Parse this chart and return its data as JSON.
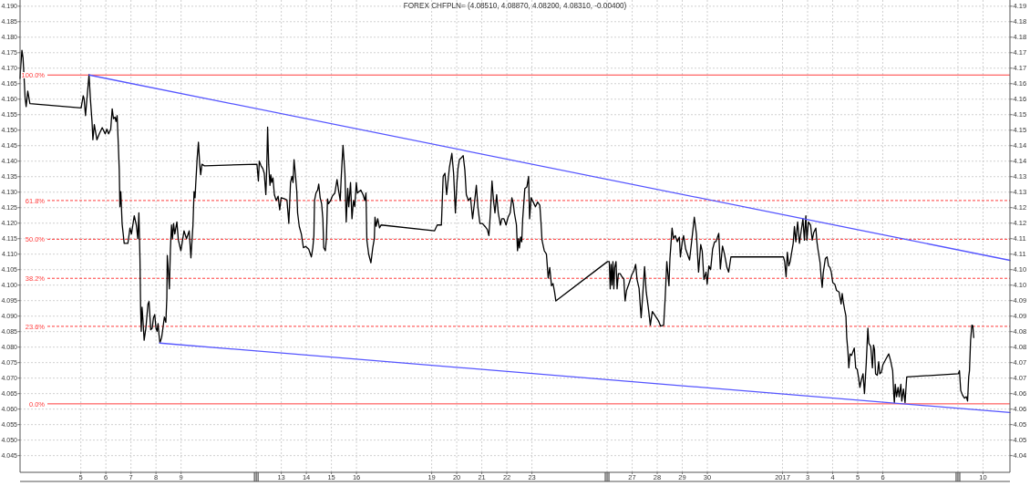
{
  "chart_data": {
    "type": "line",
    "title": "FOREX CHFPLN= (4.08510, 4.08870, 4.08200, 4.08310, -0.00400)",
    "grid": true,
    "line_style": "solid",
    "xlim": [
      "2016-12-02T13:48",
      "2017-01-11T01:48"
    ],
    "xticks": [
      {
        "value": "2016-12-05",
        "label": "5"
      },
      {
        "value": "2016-12-06",
        "label": "6"
      },
      {
        "value": "2016-12-07",
        "label": "7"
      },
      {
        "value": "2016-12-08",
        "label": "8"
      },
      {
        "value": "2016-12-09",
        "label": "9"
      },
      {
        "value": "2016-12-12",
        "label": null
      },
      {
        "value": "2016-12-13",
        "label": "13"
      },
      {
        "value": "2016-12-14",
        "label": "14"
      },
      {
        "value": "2016-12-15",
        "label": "15"
      },
      {
        "value": "2016-12-16",
        "label": "16"
      },
      {
        "value": "2016-12-19",
        "label": "19"
      },
      {
        "value": "2016-12-20",
        "label": "20"
      },
      {
        "value": "2016-12-21",
        "label": "21"
      },
      {
        "value": "2016-12-22",
        "label": "22"
      },
      {
        "value": "2016-12-23",
        "label": "23"
      },
      {
        "value": "2016-12-26",
        "label": null
      },
      {
        "value": "2016-12-27",
        "label": "27"
      },
      {
        "value": "2016-12-28",
        "label": "28"
      },
      {
        "value": "2016-12-29",
        "label": "29"
      },
      {
        "value": "2016-12-30",
        "label": "30"
      },
      {
        "value": "2017-01-02",
        "label": "2017"
      },
      {
        "value": "2017-01-03",
        "label": "3"
      },
      {
        "value": "2017-01-04",
        "label": "4"
      },
      {
        "value": "2017-01-05",
        "label": "5"
      },
      {
        "value": "2017-01-06",
        "label": "6"
      },
      {
        "value": "2017-01-09",
        "label": null
      },
      {
        "value": "2017-01-10",
        "label": "10"
      }
    ],
    "ylim": [
      4.0396,
      4.192
    ],
    "yticks": [
      {
        "value": 4.045,
        "label": "4.045"
      },
      {
        "value": 4.05,
        "label": "4.050"
      },
      {
        "value": 4.055,
        "label": "4.055"
      },
      {
        "value": 4.06,
        "label": "4.060"
      },
      {
        "value": 4.065,
        "label": "4.065"
      },
      {
        "value": 4.07,
        "label": "4.070"
      },
      {
        "value": 4.075,
        "label": "4.075"
      },
      {
        "value": 4.08,
        "label": "4.080"
      },
      {
        "value": 4.085,
        "label": "4.085"
      },
      {
        "value": 4.09,
        "label": "4.090"
      },
      {
        "value": 4.095,
        "label": "4.095"
      },
      {
        "value": 4.1,
        "label": "4.100"
      },
      {
        "value": 4.105,
        "label": "4.105"
      },
      {
        "value": 4.11,
        "label": "4.110"
      },
      {
        "value": 4.115,
        "label": "4.115"
      },
      {
        "value": 4.12,
        "label": "4.120"
      },
      {
        "value": 4.125,
        "label": "4.125"
      },
      {
        "value": 4.13,
        "label": "4.130"
      },
      {
        "value": 4.135,
        "label": "4.135"
      },
      {
        "value": 4.14,
        "label": "4.140"
      },
      {
        "value": 4.145,
        "label": "4.145"
      },
      {
        "value": 4.15,
        "label": "4.150"
      },
      {
        "value": 4.155,
        "label": "4.155"
      },
      {
        "value": 4.16,
        "label": "4.160"
      },
      {
        "value": 4.165,
        "label": "4.165"
      },
      {
        "value": 4.17,
        "label": "4.170"
      },
      {
        "value": 4.175,
        "label": "4.175"
      },
      {
        "value": 4.18,
        "label": "4.180"
      },
      {
        "value": 4.185,
        "label": "4.185"
      },
      {
        "value": 4.19,
        "label": "4.190"
      }
    ],
    "y2lim": [
      4.0396,
      4.192
    ],
    "y2ticks": [
      {
        "value": 4.045,
        "label": "4.04"
      },
      {
        "value": 4.05,
        "label": "4.05"
      },
      {
        "value": 4.055,
        "label": "4.05"
      },
      {
        "value": 4.06,
        "label": "4.06"
      },
      {
        "value": 4.065,
        "label": "4.06"
      },
      {
        "value": 4.07,
        "label": "4.07"
      },
      {
        "value": 4.075,
        "label": "4.07"
      },
      {
        "value": 4.08,
        "label": "4.08"
      },
      {
        "value": 4.085,
        "label": "4.08"
      },
      {
        "value": 4.09,
        "label": "4.09"
      },
      {
        "value": 4.095,
        "label": "4.09"
      },
      {
        "value": 4.1,
        "label": "4.10"
      },
      {
        "value": 4.105,
        "label": "4.10"
      },
      {
        "value": 4.11,
        "label": "4.11"
      },
      {
        "value": 4.115,
        "label": "4.11"
      },
      {
        "value": 4.12,
        "label": "4.12"
      },
      {
        "value": 4.125,
        "label": "4.12"
      },
      {
        "value": 4.13,
        "label": "4.13"
      },
      {
        "value": 4.135,
        "label": "4.13"
      },
      {
        "value": 4.14,
        "label": "4.14"
      },
      {
        "value": 4.145,
        "label": "4.14"
      },
      {
        "value": 4.15,
        "label": "4.15"
      },
      {
        "value": 4.155,
        "label": "4.15"
      },
      {
        "value": 4.16,
        "label": "4.16"
      },
      {
        "value": 4.165,
        "label": "4.16"
      },
      {
        "value": 4.17,
        "label": "4.17"
      },
      {
        "value": 4.175,
        "label": "4.17"
      },
      {
        "value": 4.18,
        "label": "4.18"
      },
      {
        "value": 4.185,
        "label": "4.18"
      },
      {
        "value": 4.19,
        "label": "4.19"
      }
    ],
    "ref_lines": [
      {
        "axis": "y",
        "value": 4.1678,
        "color": "#ff3c3c",
        "line_style": "solid"
      },
      {
        "axis": "y",
        "value": 4.1273,
        "color": "#ff3c3c",
        "line_style": "dashed"
      },
      {
        "axis": "y",
        "value": 4.1148,
        "color": "#ff3c3c",
        "line_style": "dashed"
      },
      {
        "axis": "y",
        "value": 4.1022,
        "color": "#ff3c3c",
        "line_style": "dashed"
      },
      {
        "axis": "y",
        "value": 4.0867,
        "color": "#ff3c3c",
        "line_style": "dashed"
      },
      {
        "axis": "y",
        "value": 4.0617,
        "color": "#ff3c3c",
        "line_style": "solid"
      }
    ],
    "annotations": [
      "100.0%",
      "61.8%",
      "50.0%",
      "38.2%",
      "23.6%",
      "0.0%"
    ],
    "series": [
      {
        "color": "#000000",
        "x": [
          "2016-12-02T13:48",
          "2016-12-02T14:14",
          "2016-12-02T15:36",
          "2016-12-02T16:38",
          "2016-12-02T17:35",
          "2016-12-02T18:36",
          "2016-12-02T19:38",
          "2016-12-02T21:11",
          "2016-12-02T23:14",
          "2016-12-05T00:16",
          "2016-12-05T02:17",
          "2016-12-05T03:08",
          "2016-12-05T04:29",
          "2016-12-05T06:20",
          "2016-12-05T07:51",
          "2016-12-05T09:16",
          "2016-12-05T10:43",
          "2016-12-05T11:33",
          "2016-12-05T12:54",
          "2016-12-05T15:26",
          "2016-12-05T17:41",
          "2016-12-05T20:29",
          "2016-12-05T23:20",
          "2016-12-06T00:55",
          "2016-12-06T02:36",
          "2016-12-06T04:37",
          "2016-12-06T06:03",
          "2016-12-06T07:16",
          "2016-12-06T08:45",
          "2016-12-06T09:44",
          "2016-12-06T10:46",
          "2016-12-06T11:50",
          "2016-12-06T12:49",
          "2016-12-06T13:26",
          "2016-12-06T14:17",
          "2016-12-06T15:31",
          "2016-12-06T17:32",
          "2016-12-06T21:04",
          "2016-12-06T23:05",
          "2016-12-07T00:30",
          "2016-12-07T03:10",
          "2016-12-07T05:10",
          "2016-12-07T06:34",
          "2016-12-07T07:36",
          "2016-12-07T08:38",
          "2016-12-07T09:15",
          "2016-12-07T09:51",
          "2016-12-07T10:38",
          "2016-12-07T11:26",
          "2016-12-07T12:39",
          "2016-12-07T14:17",
          "2016-12-07T16:18",
          "2016-12-07T17:19",
          "2016-12-07T18:58",
          "2016-12-07T20:21",
          "2016-12-07T21:34",
          "2016-12-07T22:47",
          "2016-12-08T00:00",
          "2016-12-08T01:02",
          "2016-12-08T01:59",
          "2016-12-08T02:50",
          "2016-12-08T03:47",
          "2016-12-08T05:24",
          "2016-12-08T06:48",
          "2016-12-08T07:59",
          "2016-12-08T09:26",
          "2016-12-08T10:23",
          "2016-12-08T10:48",
          "2016-12-08T12:00",
          "2016-12-08T12:48",
          "2016-12-08T13:48",
          "2016-12-08T14:50",
          "2016-12-08T15:47",
          "2016-12-08T16:48",
          "2016-12-08T18:00",
          "2016-12-08T19:59",
          "2016-12-08T21:26",
          "2016-12-08T23:50",
          "2016-12-09T02:50",
          "2016-12-09T05:14",
          "2016-12-09T07:48",
          "2016-12-09T09:26",
          "2016-12-09T11:24",
          "2016-12-09T12:26",
          "2016-12-09T13:23",
          "2016-12-09T13:59",
          "2016-12-09T15:26",
          "2016-12-09T16:38",
          "2016-12-09T17:50",
          "2016-12-09T18:47",
          "2016-12-09T19:59",
          "2016-12-09T22:23",
          "2016-12-12T00:40",
          "2016-12-12T02:03",
          "2016-12-12T02:55",
          "2016-12-12T04:36",
          "2016-12-12T06:17",
          "2016-12-12T07:40",
          "2016-12-12T09:11",
          "2016-12-12T10:04",
          "2016-12-12T10:53",
          "2016-12-12T11:55",
          "2016-12-12T13:08",
          "2016-12-12T13:57",
          "2016-12-12T14:49",
          "2016-12-12T15:59",
          "2016-12-12T17:22",
          "2016-12-12T19:04",
          "2016-12-12T20:56",
          "2016-12-12T22:28",
          "2016-12-12T23:51",
          "2016-12-13T03:11",
          "2016-12-13T05:24",
          "2016-12-13T07:12",
          "2016-12-13T08:50",
          "2016-12-13T10:12",
          "2016-12-13T11:14",
          "2016-12-13T12:11",
          "2016-12-13T13:38",
          "2016-12-13T14:50",
          "2016-12-13T15:36",
          "2016-12-13T17:14",
          "2016-12-13T19:12",
          "2016-12-13T21:11",
          "2016-12-13T23:24",
          "2016-12-14T02:14",
          "2016-12-14T04:48",
          "2016-12-14T06:11",
          "2016-12-14T07:12",
          "2016-12-14T07:48",
          "2016-12-14T09:11",
          "2016-12-14T10:48",
          "2016-12-14T11:50",
          "2016-12-14T13:12",
          "2016-12-14T14:35",
          "2016-12-14T15:47",
          "2016-12-14T16:38",
          "2016-12-14T18:11",
          "2016-12-14T19:12",
          "2016-12-14T20:14",
          "2016-12-14T21:11",
          "2016-12-14T23:14",
          "2016-12-15T00:49",
          "2016-12-15T03:16",
          "2016-12-15T05:22",
          "2016-12-15T06:46",
          "2016-12-15T08:26",
          "2016-12-15T09:26",
          "2016-12-15T11:05",
          "2016-12-15T12:55",
          "2016-12-15T14:09",
          "2016-12-15T15:35",
          "2016-12-15T16:37",
          "2016-12-15T18:17",
          "2016-12-15T19:41",
          "2016-12-15T21:07",
          "2016-12-15T22:21",
          "2016-12-15T23:50",
          "2016-12-16T00:51",
          "2016-12-16T04:06",
          "2016-12-16T06:18",
          "2016-12-16T07:59",
          "2016-12-16T09:05",
          "2016-12-16T09:56",
          "2016-12-16T11:40",
          "2016-12-16T13:50",
          "2016-12-16T15:34",
          "2016-12-16T17:04",
          "2016-12-16T17:43",
          "2016-12-16T18:49",
          "2016-12-16T20:19",
          "2016-12-16T22:03",
          "2016-12-16T23:34",
          "2016-12-19T02:43",
          "2016-12-19T05:19",
          "2016-12-19T09:19",
          "2016-12-19T11:00",
          "2016-12-19T12:43",
          "2016-12-19T14:19",
          "2016-12-19T17:00",
          "2016-12-19T19:19",
          "2016-12-19T21:00",
          "2016-12-19T22:43",
          "2016-12-20T00:12",
          "2016-12-20T01:12",
          "2016-12-20T02:35",
          "2016-12-20T04:12",
          "2016-12-20T06:11",
          "2016-12-20T07:48",
          "2016-12-20T09:11",
          "2016-12-20T11:14",
          "2016-12-20T13:12",
          "2016-12-20T15:11",
          "2016-12-20T17:14",
          "2016-12-20T18:47",
          "2016-12-20T20:14",
          "2016-12-20T22:12",
          "2016-12-21T00:36",
          "2016-12-21T03:11",
          "2016-12-21T05:14",
          "2016-12-21T06:48",
          "2016-12-21T08:14",
          "2016-12-21T09:47",
          "2016-12-21T11:14",
          "2016-12-21T12:36",
          "2016-12-21T14:14",
          "2016-12-21T15:47",
          "2016-12-21T17:50",
          "2016-12-21T19:12",
          "2016-12-21T21:11",
          "2016-12-21T23:14",
          "2016-12-22T01:12",
          "2016-12-22T03:11",
          "2016-12-22T04:48",
          "2016-12-22T06:11",
          "2016-12-22T07:12",
          "2016-12-22T09:11",
          "2016-12-22T10:12",
          "2016-12-22T11:14",
          "2016-12-22T12:00",
          "2016-12-22T13:12",
          "2016-12-22T14:14",
          "2016-12-22T15:11",
          "2016-12-22T17:14",
          "2016-12-22T19:12",
          "2016-12-22T20:50",
          "2016-12-22T21:47",
          "2016-12-22T23:14",
          "2016-12-23T01:16",
          "2016-12-23T03:22",
          "2016-12-23T05:30",
          "2016-12-23T07:35",
          "2016-12-23T08:40",
          "2016-12-23T09:41",
          "2016-12-23T11:49",
          "2016-12-23T13:54",
          "2016-12-23T15:37",
          "2016-12-23T17:03",
          "2016-12-23T18:46",
          "2016-12-23T20:13",
          "2016-12-23T21:41",
          "2016-12-23T22:56",
          "2016-12-26T00:23",
          "2016-12-26T02:05",
          "2016-12-26T02:59",
          "2016-12-26T03:49",
          "2016-12-26T04:42",
          "2016-12-26T05:35",
          "2016-12-26T06:26",
          "2016-12-26T07:18",
          "2016-12-26T08:31",
          "2016-12-26T09:34",
          "2016-12-26T10:49",
          "2016-12-26T12:31",
          "2016-12-26T14:15",
          "2016-12-26T16:02",
          "2016-12-26T17:13",
          "2016-12-26T18:38",
          "2016-12-26T21:15",
          "2016-12-26T23:29",
          "2016-12-27T01:45",
          "2016-12-27T03:21",
          "2016-12-27T04:41",
          "2016-12-27T06:37",
          "2016-12-27T08:37",
          "2016-12-27T09:57",
          "2016-12-27T11:54",
          "2016-12-27T13:28",
          "2016-12-27T15:24",
          "2016-12-27T17:24",
          "2016-12-27T19:19",
          "2016-12-27T22:15",
          "2016-12-28T01:12",
          "2016-12-28T03:11",
          "2016-12-28T06:11",
          "2016-12-28T07:38",
          "2016-12-28T09:11",
          "2016-12-28T11:14",
          "2016-12-28T12:11",
          "2016-12-28T14:14",
          "2016-12-28T15:36",
          "2016-12-28T17:14",
          "2016-12-28T19:12",
          "2016-12-28T21:11",
          "2016-12-28T22:12",
          "2016-12-29T00:00",
          "2016-12-29T01:14",
          "2016-12-29T03:16",
          "2016-12-29T06:58",
          "2016-12-29T08:37",
          "2016-12-29T11:31",
          "2016-12-29T13:32",
          "2016-12-29T15:35",
          "2016-12-29T17:40",
          "2016-12-29T19:05",
          "2016-12-29T20:45",
          "2016-12-29T22:46",
          "2016-12-29T23:50",
          "2016-12-30T01:28",
          "2016-12-30T03:09",
          "2016-12-30T05:03",
          "2016-12-30T06:57",
          "2016-12-30T08:13",
          "2016-12-30T10:56",
          "2016-12-30T12:27",
          "2016-12-30T14:32",
          "2016-12-30T16:25",
          "2016-12-30T18:46",
          "2016-12-30T20:25",
          "2016-12-30T22:34",
          "2017-01-02T00:53",
          "2017-01-02T02:03",
          "2017-01-02T03:26",
          "2017-01-02T04:36",
          "2017-01-02T05:59",
          "2017-01-02T07:19",
          "2017-01-02T08:32",
          "2017-01-02T10:13",
          "2017-01-02T11:24",
          "2017-01-02T12:46",
          "2017-01-02T14:28",
          "2017-01-02T16:12",
          "2017-01-02T17:52",
          "2017-01-02T19:34",
          "2017-01-02T20:56",
          "2017-01-02T22:20",
          "2017-01-02T23:21",
          "2017-01-03T00:48",
          "2017-01-03T02:52",
          "2017-01-03T04:27",
          "2017-01-03T05:54",
          "2017-01-03T07:54",
          "2017-01-03T08:57",
          "2017-01-03T09:55",
          "2017-01-03T11:59",
          "2017-01-03T12:57",
          "2017-01-03T13:58",
          "2017-01-03T15:01",
          "2017-01-03T17:01",
          "2017-01-03T18:40",
          "2017-01-03T20:03",
          "2017-01-03T21:28",
          "2017-01-03T22:41",
          "2017-01-04T00:08",
          "2017-01-04T02:06",
          "2017-01-04T03:44",
          "2017-01-04T06:08",
          "2017-01-04T08:06",
          "2017-01-04T09:08",
          "2017-01-04T10:05",
          "2017-01-04T11:32",
          "2017-01-04T12:44",
          "2017-01-04T13:30",
          "2017-01-04T14:42",
          "2017-01-04T15:29",
          "2017-01-04T16:41",
          "2017-01-04T18:08",
          "2017-01-04T20:42",
          "2017-01-04T22:05",
          "2017-01-04T23:32",
          "2017-01-05T00:44",
          "2017-01-05T02:06",
          "2017-01-05T03:29",
          "2017-01-05T05:06",
          "2017-01-05T06:29",
          "2017-01-05T08:06",
          "2017-01-05T09:44",
          "2017-01-05T10:41",
          "2017-01-05T12:29",
          "2017-01-05T14:06",
          "2017-01-05T15:08",
          "2017-01-05T16:05",
          "2017-01-05T17:06",
          "2017-01-05T18:44",
          "2017-01-05T20:06",
          "2017-01-05T21:08",
          "2017-01-05T22:41",
          "2017-01-06T00:08",
          "2017-01-06T03:15",
          "2017-01-06T05:45",
          "2017-01-06T07:22",
          "2017-01-06T09:29",
          "2017-01-06T10:29",
          "2017-01-06T11:07",
          "2017-01-06T11:59",
          "2017-01-06T13:14",
          "2017-01-06T14:39",
          "2017-01-06T15:43",
          "2017-01-06T17:20",
          "2017-01-06T18:13",
          "2017-01-06T19:50",
          "2017-01-06T21:20",
          "2017-01-06T22:57",
          "2017-01-09T00:23",
          "2017-01-09T01:27",
          "2017-01-09T02:40",
          "2017-01-09T04:26",
          "2017-01-09T06:15",
          "2017-01-09T08:00",
          "2017-01-09T09:14",
          "2017-01-09T10:18",
          "2017-01-09T11:03",
          "2017-01-09T12:07",
          "2017-01-09T13:20",
          "2017-01-09T14:15",
          "2017-01-09T15:06"
        ],
        "values": [
          4.1667,
          4.1694,
          4.1758,
          4.1734,
          4.1675,
          4.1606,
          4.1576,
          4.1626,
          4.1586,
          4.1572,
          4.1611,
          4.1601,
          4.1547,
          4.162,
          4.1679,
          4.1596,
          4.1528,
          4.1469,
          4.1518,
          4.1469,
          4.1488,
          4.1508,
          4.1488,
          4.1503,
          4.1488,
          4.1503,
          4.1569,
          4.1537,
          4.1542,
          4.1528,
          4.1547,
          4.1459,
          4.1371,
          4.1253,
          4.1302,
          4.1199,
          4.1135,
          4.1135,
          4.1184,
          4.1165,
          4.1224,
          4.1194,
          4.115,
          4.1233,
          4.1086,
          4.0929,
          4.0851,
          4.0929,
          4.089,
          4.0822,
          4.0861,
          4.0939,
          4.0947,
          4.0856,
          4.0861,
          4.0895,
          4.0905,
          4.0861,
          4.0851,
          4.0876,
          4.0841,
          4.0814,
          4.0831,
          4.0866,
          4.0897,
          4.088,
          4.0959,
          4.1096,
          4.1037,
          4.0988,
          4.1116,
          4.1194,
          4.115,
          4.1199,
          4.1165,
          4.1204,
          4.1145,
          4.1111,
          4.1175,
          4.115,
          4.1175,
          4.1088,
          4.1194,
          4.1302,
          4.1282,
          4.1322,
          4.141,
          4.1461,
          4.139,
          4.1356,
          4.139,
          4.1385,
          4.139,
          4.1336,
          4.14,
          4.1385,
          4.1376,
          4.1361,
          4.1292,
          4.138,
          4.151,
          4.139,
          4.1322,
          4.1356,
          4.1331,
          4.1346,
          4.1292,
          4.1273,
          4.1287,
          4.1243,
          4.1282,
          4.1278,
          4.1275,
          4.1199,
          4.1331,
          4.1351,
          4.1331,
          4.1405,
          4.1351,
          4.1302,
          4.1233,
          4.1189,
          4.1165,
          4.1121,
          4.1125,
          4.1116,
          4.1091,
          4.1121,
          4.116,
          4.1273,
          4.1297,
          4.1307,
          4.1326,
          4.1282,
          4.1263,
          4.1214,
          4.1121,
          4.1111,
          4.115,
          4.1278,
          4.1263,
          4.1273,
          4.1287,
          4.1297,
          4.1341,
          4.1307,
          4.1273,
          4.1351,
          4.1451,
          4.1361,
          4.1204,
          4.1312,
          4.1253,
          4.1331,
          4.1214,
          4.1273,
          4.1253,
          4.1331,
          4.1297,
          4.1307,
          4.1292,
          4.1273,
          4.1297,
          4.1145,
          4.11,
          4.1072,
          4.112,
          4.115,
          4.1219,
          4.119,
          4.1214,
          4.1185,
          4.1194,
          4.1175,
          4.1194,
          4.1194,
          4.1351,
          4.1361,
          4.1292,
          4.138,
          4.1425,
          4.1361,
          4.1233,
          4.1331,
          4.1376,
          4.1405,
          4.141,
          4.1418,
          4.1371,
          4.1292,
          4.1273,
          4.1282,
          4.1214,
          4.1273,
          4.1322,
          4.1253,
          4.1199,
          4.1199,
          4.1189,
          4.118,
          4.116,
          4.1233,
          4.1336,
          4.1273,
          4.1233,
          4.1292,
          4.1233,
          4.1194,
          4.1214,
          4.1214,
          4.1194,
          4.1219,
          4.1233,
          4.1282,
          4.1263,
          4.1233,
          4.1194,
          4.1111,
          4.115,
          4.112,
          4.1155,
          4.114,
          4.1214,
          4.1312,
          4.1317,
          4.1351,
          4.1214,
          4.1282,
          4.1268,
          4.1253,
          4.1268,
          4.1258,
          4.1204,
          4.1145,
          4.1111,
          4.11,
          4.1023,
          4.1057,
          4.0998,
          4.1005,
          4.0978,
          4.0949,
          4.1076,
          4.1076,
          4.0988,
          4.1067,
          4.1,
          4.1076,
          4.0988,
          4.1057,
          4.1076,
          4.0988,
          4.1037,
          4.1037,
          4.1027,
          4.102,
          4.0949,
          4.0983,
          4.1008,
          4.1032,
          4.1047,
          4.1067,
          4.1018,
          4.099,
          4.0895,
          4.0959,
          4.106,
          4.0978,
          4.0929,
          4.0871,
          4.0915,
          4.09,
          4.0885,
          4.0868,
          4.0871,
          4.0959,
          4.1076,
          4.0998,
          4.1086,
          4.1184,
          4.115,
          4.116,
          4.114,
          4.1155,
          4.1091,
          4.114,
          4.116,
          4.1116,
          4.1081,
          4.113,
          4.1219,
          4.1165,
          4.1042,
          4.1131,
          4.111,
          4.1018,
          4.1042,
          4.1003,
          4.1062,
          4.105,
          4.1116,
          4.114,
          4.114,
          4.1167,
          4.1052,
          4.1126,
          4.11,
          4.1057,
          4.1042,
          4.1091,
          4.1091,
          4.1076,
          4.1027,
          4.1106,
          4.1062,
          4.1076,
          4.1101,
          4.1135,
          4.1189,
          4.114,
          4.1204,
          4.1135,
          4.1175,
          4.1214,
          4.1145,
          4.1224,
          4.1145,
          4.1204,
          4.1194,
          4.1145,
          4.117,
          4.1184,
          4.114,
          4.1116,
          4.1072,
          4.1027,
          4.0993,
          4.104,
          4.1086,
          4.1091,
          4.1062,
          4.1057,
          4.1042,
          4.1008,
          4.1003,
          4.0983,
          4.0978,
          4.0939,
          4.0973,
          4.0949,
          4.092,
          4.09,
          4.0831,
          4.0782,
          4.0733,
          4.0778,
          4.0773,
          4.0797,
          4.0733,
          4.0728,
          4.0704,
          4.067,
          4.0694,
          4.0714,
          4.065,
          4.0743,
          4.0861,
          4.0812,
          4.0802,
          4.0733,
          4.0807,
          4.0792,
          4.0714,
          4.0709,
          4.0753,
          4.0714,
          4.0719,
          4.0743,
          4.0763,
          4.0778,
          4.0758,
          4.0724,
          4.065,
          4.0621,
          4.068,
          4.064,
          4.067,
          4.064,
          4.068,
          4.0626,
          4.0665,
          4.0621,
          4.0704,
          4.0714,
          4.0724,
          4.066,
          4.0645,
          4.0635,
          4.064,
          4.0626,
          4.0704,
          4.0724,
          4.0822,
          4.0871,
          4.0869,
          4.0831
        ]
      },
      {
        "type": "line",
        "color": "#5555ff",
        "x": [
          "2016-12-05T07:51",
          "2017-01-11T01:48"
        ],
        "values": [
          4.1678,
          4.108
        ]
      },
      {
        "type": "line",
        "color": "#5555ff",
        "x": [
          "2016-12-08T03:26",
          "2017-01-11T01:48"
        ],
        "values": [
          4.0813,
          4.0589
        ]
      }
    ]
  }
}
